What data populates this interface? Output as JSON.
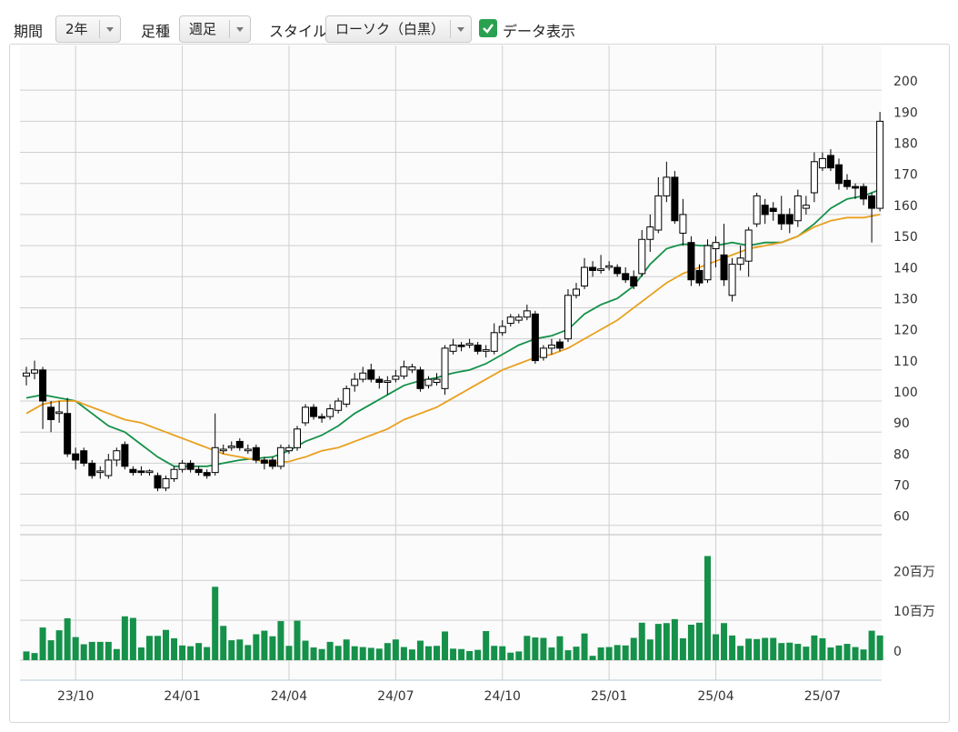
{
  "toolbar": {
    "period": {
      "label": "期間",
      "value": "2年"
    },
    "bar_type": {
      "label": "足種",
      "value": "週足"
    },
    "style": {
      "label": "スタイル",
      "value": "ローソク（白黒）"
    },
    "data_display": {
      "label": "データ表示",
      "checked": true
    }
  },
  "chart_data": {
    "type": "candlestick",
    "categories": [
      null,
      null,
      null,
      null,
      null,
      null,
      "23/10",
      null,
      null,
      null,
      null,
      null,
      null,
      null,
      null,
      null,
      null,
      null,
      null,
      "24/01",
      null,
      null,
      null,
      null,
      null,
      null,
      null,
      null,
      null,
      null,
      null,
      null,
      "24/04",
      null,
      null,
      null,
      null,
      null,
      null,
      null,
      null,
      null,
      null,
      null,
      null,
      "24/07",
      null,
      null,
      null,
      null,
      null,
      null,
      null,
      null,
      null,
      null,
      null,
      null,
      "24/10",
      null,
      null,
      null,
      null,
      null,
      null,
      null,
      null,
      null,
      null,
      null,
      null,
      "25/01",
      null,
      null,
      null,
      null,
      null,
      null,
      null,
      null,
      null,
      null,
      null,
      null,
      "25/04",
      null,
      null,
      null,
      null,
      null,
      null,
      null,
      null,
      null,
      null,
      null,
      null,
      "25/07",
      null,
      null,
      null,
      null,
      null,
      null,
      null
    ],
    "open": [
      108,
      109,
      110,
      98,
      96,
      96,
      83,
      84,
      80,
      77,
      76,
      81,
      86,
      78,
      77.5,
      77,
      76,
      72,
      75,
      78,
      80,
      78,
      77,
      77,
      84,
      85,
      87,
      84,
      85,
      81,
      81,
      79,
      84,
      85,
      93,
      98,
      95,
      95,
      97,
      99,
      105,
      107,
      110,
      107,
      106,
      107,
      108,
      110,
      110,
      105,
      106,
      104,
      116,
      118,
      118,
      118,
      116,
      116,
      122,
      125,
      126,
      127,
      128,
      114,
      117,
      119,
      120,
      134,
      137,
      143,
      142,
      143,
      143,
      141,
      140,
      141,
      152,
      155,
      166,
      172,
      154,
      151,
      142,
      139,
      149,
      147,
      134,
      144,
      145,
      157,
      163,
      162,
      160,
      160,
      158,
      162,
      167,
      175,
      179,
      176,
      171,
      169,
      169,
      166,
      162
    ],
    "high": [
      111,
      113,
      111,
      100,
      100,
      101,
      85,
      85,
      81,
      79,
      83,
      85,
      87,
      79,
      79,
      78,
      77,
      76,
      79,
      81,
      81,
      79,
      78,
      96,
      86,
      87,
      88,
      86,
      86,
      82,
      82,
      86,
      86,
      92,
      99,
      99,
      96,
      99,
      101,
      105,
      109,
      111,
      112,
      108,
      108,
      110,
      113,
      112,
      111,
      108,
      109,
      118,
      120,
      119,
      120,
      119,
      118,
      125,
      126,
      128,
      128,
      131,
      129,
      118,
      120,
      120,
      136,
      138,
      146,
      145,
      147,
      145,
      144,
      143,
      142,
      155,
      160,
      172,
      177,
      174,
      165,
      153,
      144,
      152,
      153,
      157,
      146,
      150,
      156,
      167,
      165,
      164,
      166,
      162,
      168,
      166,
      180,
      180,
      181,
      178,
      173,
      170,
      170,
      167,
      193
    ],
    "low": [
      105,
      107,
      91,
      90,
      93,
      82,
      78,
      79,
      75,
      75,
      75,
      79,
      78,
      76,
      76,
      76,
      71,
      71,
      74,
      77,
      77,
      76,
      75,
      76,
      83,
      84,
      84,
      83,
      80,
      78,
      78,
      78,
      83,
      84,
      92,
      94,
      93,
      94,
      96,
      98,
      103,
      106,
      106,
      104,
      102,
      106,
      107,
      109,
      103,
      104,
      105,
      102,
      115,
      116,
      117,
      115,
      114,
      115,
      121,
      124,
      125,
      126,
      112,
      113,
      115,
      116,
      119,
      133,
      136,
      140,
      141,
      142,
      140,
      138,
      136,
      140,
      148,
      154,
      164,
      157,
      150,
      137,
      137,
      138,
      143,
      137,
      132,
      142,
      140,
      156,
      157,
      158,
      155,
      154,
      156,
      160,
      164,
      174,
      174,
      168,
      168,
      165,
      163,
      151,
      161
    ],
    "close": [
      109,
      110,
      100,
      94,
      96.5,
      83,
      81,
      80,
      76,
      77.5,
      81,
      84,
      79,
      77,
      77,
      77.5,
      72,
      75,
      78,
      80,
      78,
      77,
      76,
      85,
      84.5,
      85.5,
      85,
      84.5,
      81,
      80,
      79,
      85,
      85,
      91,
      98,
      95,
      94.5,
      97.5,
      100,
      104,
      107,
      109,
      107,
      106,
      106.5,
      108,
      111,
      111,
      104,
      107,
      107,
      117,
      118,
      117.5,
      118.5,
      116,
      116.5,
      122,
      124,
      127,
      127,
      129,
      113,
      117,
      118,
      117,
      134,
      136,
      143,
      142,
      142.5,
      143.5,
      141,
      139,
      137,
      152,
      156,
      166,
      172,
      158,
      160,
      139,
      138,
      150,
      151,
      139,
      144,
      146,
      155,
      166,
      160,
      161,
      157,
      157,
      166,
      163,
      177,
      178,
      175,
      170,
      169,
      168.5,
      165,
      162,
      190
    ],
    "up_color": "#ffffff",
    "down_color": "#000000",
    "outline_color": "#000000",
    "moving_averages": [
      {
        "color": "#15914a",
        "values": [
          101,
          101.5,
          102,
          101.5,
          101,
          100.5,
          100,
          98,
          96,
          94,
          92,
          91,
          90,
          88,
          86,
          84,
          82,
          80.5,
          79,
          79,
          79,
          79,
          79,
          79.5,
          80,
          80.5,
          81,
          81.3,
          81.5,
          81.8,
          82,
          83,
          84,
          85.5,
          87,
          88,
          89,
          90.5,
          92,
          94,
          96,
          97.5,
          99,
          100.5,
          102,
          103.5,
          105,
          105.8,
          106.5,
          107,
          107.5,
          108.3,
          109,
          109.5,
          110,
          111,
          112,
          113.5,
          115,
          116.5,
          118,
          119,
          120,
          120.5,
          121,
          122,
          123,
          125.5,
          128,
          129.5,
          131,
          132,
          133,
          135,
          137,
          140.5,
          144,
          146.5,
          149,
          149.8,
          150.5,
          150.3,
          150,
          150,
          150,
          150.5,
          151,
          150.5,
          150,
          150.5,
          151,
          151,
          151,
          152,
          153,
          155,
          157,
          159.5,
          162,
          163.5,
          165,
          165.5,
          166,
          167,
          168
        ]
      },
      {
        "color": "#e9a01f",
        "values": [
          96,
          97.5,
          99,
          99.5,
          100,
          100,
          100,
          99,
          98,
          97,
          96,
          95,
          94,
          93.5,
          93,
          92,
          91,
          90,
          89,
          88,
          87,
          86,
          85,
          84,
          83,
          82.5,
          82,
          81.5,
          81,
          80.5,
          80,
          80.3,
          80.5,
          81.3,
          82,
          83,
          84,
          84.5,
          85,
          86,
          87,
          88,
          89,
          90,
          91,
          92.5,
          94,
          95,
          96,
          97,
          98,
          99.5,
          101,
          102.5,
          104,
          105.5,
          107,
          108.5,
          110,
          111,
          112,
          113,
          114,
          114.5,
          115,
          116,
          117,
          118.5,
          120,
          121.5,
          123,
          124.5,
          126,
          128,
          130,
          132,
          134,
          136,
          138,
          139.5,
          141,
          142,
          143,
          144,
          145,
          146,
          147,
          148,
          149,
          149.5,
          150,
          150.5,
          151,
          152,
          153,
          154.5,
          156,
          157,
          158,
          158.5,
          159,
          159,
          159,
          159.5,
          160
        ]
      }
    ],
    "ylim": [
      57,
      210
    ],
    "yticks": [
      60,
      70,
      80,
      90,
      100,
      110,
      120,
      130,
      140,
      150,
      160,
      170,
      180,
      190,
      200
    ],
    "volume": [
      2.2,
      1.8,
      8.2,
      5,
      7.5,
      10.5,
      5.8,
      4,
      4.6,
      4.6,
      4.6,
      2.8,
      11,
      10.6,
      3.2,
      6.1,
      6.1,
      7.6,
      5.5,
      3.7,
      3.5,
      4.3,
      3.3,
      18.4,
      8.6,
      5,
      5.2,
      3.8,
      6.5,
      7.4,
      6,
      9.8,
      3.6,
      9.9,
      4.9,
      3.2,
      2.8,
      4.6,
      3.6,
      5.2,
      3.5,
      3.3,
      3.1,
      2.9,
      4.3,
      5.2,
      3.3,
      2.7,
      4.9,
      3.5,
      3.6,
      7.2,
      2.9,
      2.8,
      2.3,
      2.6,
      7.3,
      3.6,
      3.5,
      1.9,
      2.2,
      6.1,
      5.7,
      5.6,
      3.2,
      6,
      2.5,
      3.4,
      6.7,
      1.1,
      3.2,
      3.3,
      3.8,
      3.7,
      5.6,
      9.4,
      5.2,
      9.1,
      9.3,
      10.3,
      5.5,
      8.9,
      9.4,
      26.1,
      6.5,
      9.3,
      6.2,
      3.6,
      5.4,
      5.3,
      5.6,
      5.6,
      4.3,
      4.4,
      4.1,
      3.4,
      6.2,
      5.5,
      3.2,
      3.7,
      4.1,
      3.3,
      2.7,
      7.4,
      6.2
    ],
    "volume_color": "#15914a",
    "volume_ylim": [
      -5,
      31
    ],
    "volume_yticks": [
      0,
      {
        "value": 10,
        "label": "10百万"
      },
      {
        "value": 20,
        "label": "20百万"
      }
    ],
    "grid": true
  }
}
